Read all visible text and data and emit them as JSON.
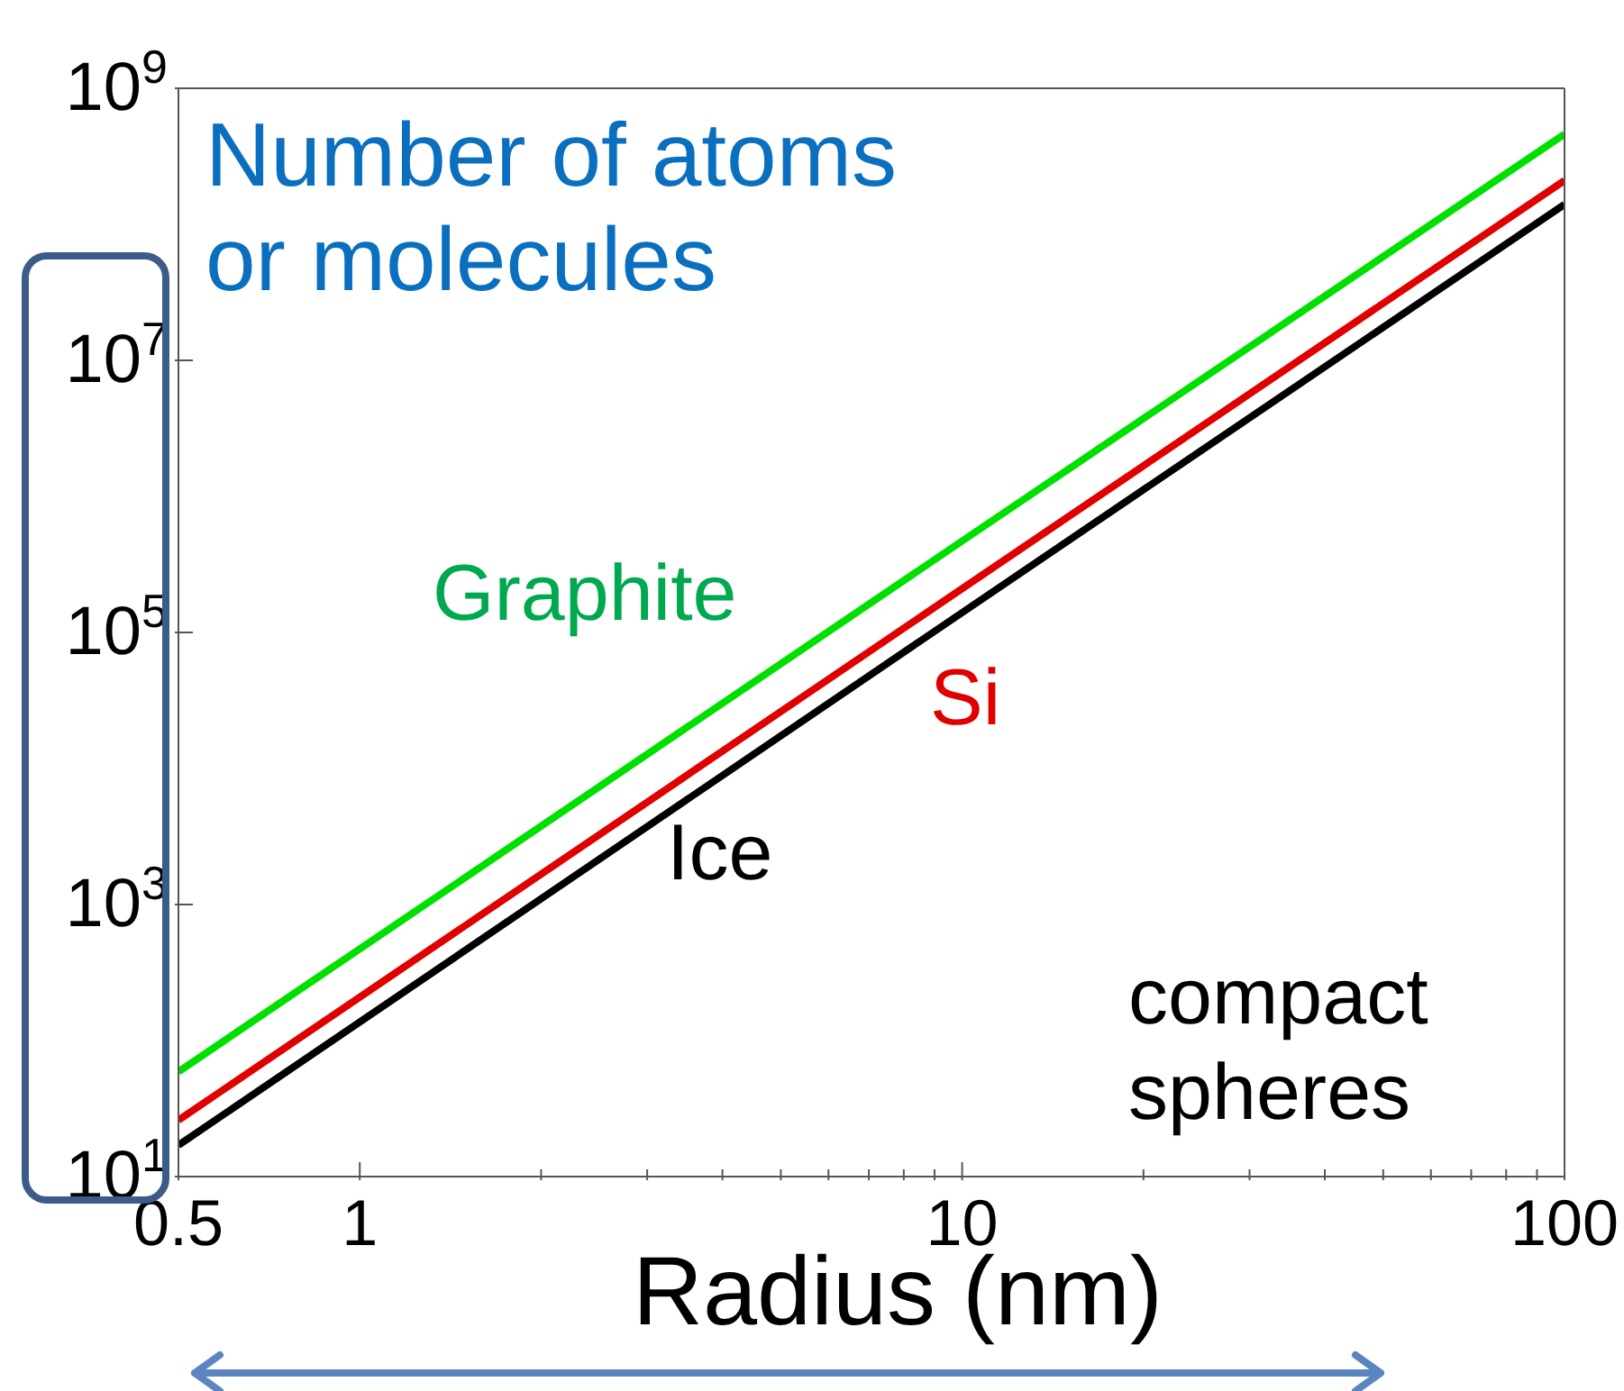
{
  "chart_data": {
    "type": "line",
    "xlabel": "Radius (nm)",
    "ylabel": "Number of atoms or molecules",
    "log": "xy",
    "x": [
      0.5,
      10,
      100
    ],
    "series": [
      {
        "name": "Graphite",
        "color": "#00e000",
        "values": [
          59,
          470000,
          460000000
        ]
      },
      {
        "name": "Si",
        "color": "#e00000",
        "values": [
          26,
          210000,
          210000000
        ]
      },
      {
        "name": "Ice",
        "color": "#000000",
        "values": [
          17,
          140000,
          140000000
        ]
      }
    ],
    "xlim": [
      0.5,
      100
    ],
    "ylim": [
      10,
      1000000000
    ],
    "xticks": [
      0.5,
      1,
      {
        "value": 2,
        "label": null
      },
      {
        "value": 3,
        "label": null
      },
      {
        "value": 4,
        "label": null
      },
      {
        "value": 5,
        "label": null
      },
      {
        "value": 6,
        "label": null
      },
      {
        "value": 7,
        "label": null
      },
      {
        "value": 8,
        "label": null
      },
      {
        "value": 9,
        "label": null
      },
      10,
      {
        "value": 20,
        "label": null
      },
      {
        "value": 30,
        "label": null
      },
      {
        "value": 40,
        "label": null
      },
      {
        "value": 50,
        "label": null
      },
      {
        "value": 60,
        "label": null
      },
      {
        "value": 70,
        "label": null
      },
      {
        "value": 80,
        "label": null
      },
      {
        "value": 90,
        "label": null
      },
      100
    ],
    "yticks": [
      {
        "value": 10,
        "label": "10$^{1}$"
      },
      {
        "value": 1000,
        "label": "10$^{3}$"
      },
      {
        "value": 100000,
        "label": "10$^{5}$"
      },
      {
        "value": 10000000,
        "label": "10$^{7}$"
      },
      {
        "value": 1000000000,
        "label": "10$^{9}$"
      }
    ],
    "line_style": "solid",
    "annotations": [
      "compact spheres"
    ]
  }
}
